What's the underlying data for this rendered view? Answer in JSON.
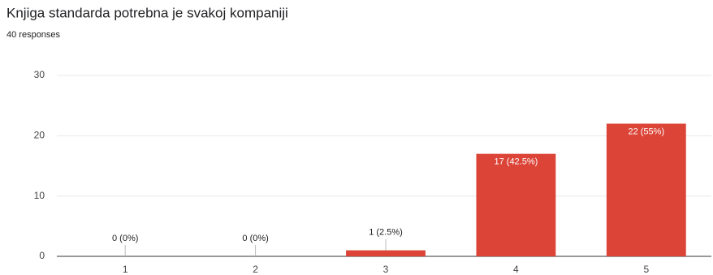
{
  "chart_data": {
    "type": "bar",
    "title": "Knjiga standarda potrebna je svakoj kompaniji",
    "subtitle": "40 responses",
    "categories": [
      "1",
      "2",
      "3",
      "4",
      "5"
    ],
    "values": [
      0,
      0,
      1,
      17,
      22
    ],
    "value_labels": [
      "0 (0%)",
      "0 (0%)",
      "1 (2.5%)",
      "17 (42.5%)",
      "22 (55%)"
    ],
    "color": "#db4437",
    "ylim": [
      0,
      30
    ],
    "yticks": [
      0,
      10,
      20,
      30
    ],
    "grid": true
  }
}
